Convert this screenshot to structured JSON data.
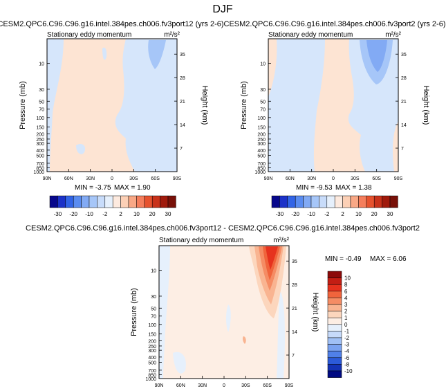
{
  "page_title": "DJF",
  "colors": {
    "frame": "#000000",
    "neg_light": "#d6e6fb",
    "pos_light": "#fde4d3"
  },
  "chart_data": [
    {
      "type": "contour",
      "title": "CESM2.QPC6.C96.C96.g16.intel.384pes.ch006.fv3port12 (yrs 2-6)",
      "left_label": "Stationary eddy momentum",
      "units": "m²/s²",
      "ylabel": "Pressure (mb)",
      "ylabel_right": "Height (km)",
      "pressure_ticks": [
        "10",
        "30",
        "50",
        "70",
        "100",
        "150",
        "200",
        "250",
        "300",
        "400",
        "500",
        "700",
        "850",
        "1000"
      ],
      "height_ticks": [
        "35",
        "28",
        "21",
        "14",
        "7"
      ],
      "lat_ticks": [
        "90N",
        "60N",
        "30N",
        "0",
        "30S",
        "60S",
        "90S"
      ],
      "min_label": "MIN = -3.75",
      "max_label": "MAX = 1.90",
      "colorbar_labels": [
        "-30",
        "-20",
        "-10",
        "-2",
        "2",
        "10",
        "20",
        "30"
      ]
    },
    {
      "type": "contour",
      "title": "CESM2.QPC6.C96.C96.g16.intel.384pes.ch006.fv3port2 (yrs 2-6)",
      "left_label": "Stationary eddy momentum",
      "units": "m²/s²",
      "ylabel": "Pressure (mb)",
      "ylabel_right": "Height (km)",
      "pressure_ticks": [
        "10",
        "30",
        "50",
        "70",
        "100",
        "150",
        "200",
        "250",
        "300",
        "400",
        "500",
        "700",
        "850",
        "1000"
      ],
      "height_ticks": [
        "35",
        "28",
        "21",
        "14",
        "7"
      ],
      "lat_ticks": [
        "90N",
        "60N",
        "30N",
        "0",
        "30S",
        "60S",
        "90S"
      ],
      "min_label": "MIN = -9.53",
      "max_label": "MAX = 1.38",
      "colorbar_labels": [
        "-30",
        "-20",
        "-10",
        "-2",
        "2",
        "10",
        "20",
        "30"
      ]
    },
    {
      "type": "contour",
      "title": "CESM2.QPC6.C96.C96.g16.intel.384pes.ch006.fv3port12 - CESM2.QPC6.C96.C96.g16.intel.384pes.ch006.fv3port2",
      "left_label": "Stationary eddy momentum",
      "units": "m²/s²",
      "ylabel": "Pressure (mb)",
      "ylabel_right": "Height (km)",
      "pressure_ticks": [
        "10",
        "30",
        "50",
        "70",
        "100",
        "150",
        "200",
        "250",
        "300",
        "400",
        "500",
        "700",
        "850",
        "1000"
      ],
      "height_ticks": [
        "35",
        "28",
        "21",
        "14",
        "7"
      ],
      "lat_ticks": [
        "90N",
        "60N",
        "30N",
        "0",
        "30S",
        "60S",
        "90S"
      ],
      "min_label": "MIN = -0.49",
      "max_label": "MAX =  6.06",
      "colorbar_labels": [
        "10",
        "8",
        "6",
        "4",
        "3",
        "2",
        "1",
        "0",
        "-1",
        "-2",
        "-3",
        "-4",
        "-6",
        "-8",
        "-10"
      ]
    }
  ],
  "colorbar_top": {
    "colors": [
      "#08088c",
      "#1c32c8",
      "#3264e6",
      "#5a8cf0",
      "#82aaf4",
      "#a6c6f8",
      "#c8dcfa",
      "#e6f0fc",
      "#fdeadf",
      "#fcd0b6",
      "#f9a886",
      "#f57e5c",
      "#e6522e",
      "#c8321a",
      "#a01a0c",
      "#781008"
    ]
  },
  "colorbar_diff": {
    "colors": [
      "#8c0a0a",
      "#c31e14",
      "#e6321e",
      "#f0643c",
      "#f58c64",
      "#f9b491",
      "#fcd6bd",
      "#fdeee4",
      "#e6f0fc",
      "#c6dafa",
      "#a0c0f5",
      "#7aa2f0",
      "#5080e8",
      "#2c5ad8",
      "#1432b4",
      "#000a82"
    ]
  }
}
